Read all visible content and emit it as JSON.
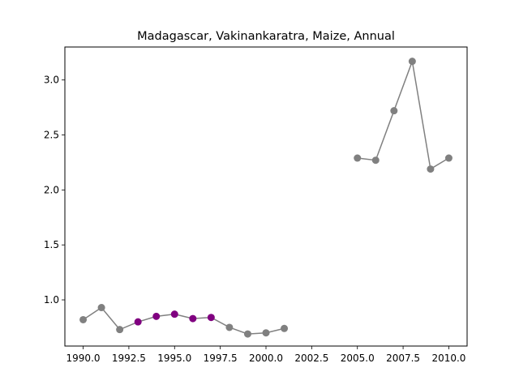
{
  "chart_data": {
    "type": "line",
    "title": "Madagascar, Vakinankaratra, Maize, Annual",
    "xlabel": "",
    "ylabel": "",
    "xlim": [
      1989.0,
      2011.0
    ],
    "ylim": [
      0.58,
      3.3
    ],
    "xticks": [
      1990.0,
      1992.5,
      1995.0,
      1997.5,
      2000.0,
      2002.5,
      2005.0,
      2007.5,
      2010.0
    ],
    "xtick_labels": [
      "1990.0",
      "1992.5",
      "1995.0",
      "1997.5",
      "2000.0",
      "2002.5",
      "2005.0",
      "2007.5",
      "2010.0"
    ],
    "yticks": [
      1.0,
      1.5,
      2.0,
      2.5,
      3.0
    ],
    "ytick_labels": [
      "1.0",
      "1.5",
      "2.0",
      "2.5",
      "3.0"
    ],
    "grid": false,
    "colors": {
      "default": "#808080",
      "highlight": "#800080"
    },
    "segments": [
      [
        {
          "x": 1990,
          "y": 0.82,
          "highlight": false
        },
        {
          "x": 1991,
          "y": 0.93,
          "highlight": false
        },
        {
          "x": 1992,
          "y": 0.73,
          "highlight": false
        },
        {
          "x": 1993,
          "y": 0.8,
          "highlight": true
        },
        {
          "x": 1994,
          "y": 0.85,
          "highlight": true
        },
        {
          "x": 1995,
          "y": 0.87,
          "highlight": true
        },
        {
          "x": 1996,
          "y": 0.83,
          "highlight": true
        },
        {
          "x": 1997,
          "y": 0.84,
          "highlight": true
        },
        {
          "x": 1998,
          "y": 0.75,
          "highlight": false
        },
        {
          "x": 1999,
          "y": 0.69,
          "highlight": false
        },
        {
          "x": 2000,
          "y": 0.7,
          "highlight": false
        },
        {
          "x": 2001,
          "y": 0.74,
          "highlight": false
        }
      ],
      [
        {
          "x": 2005,
          "y": 2.29,
          "highlight": false
        },
        {
          "x": 2006,
          "y": 2.27,
          "highlight": false
        },
        {
          "x": 2007,
          "y": 2.72,
          "highlight": false
        },
        {
          "x": 2008,
          "y": 3.17,
          "highlight": false
        },
        {
          "x": 2009,
          "y": 2.19,
          "highlight": false
        },
        {
          "x": 2010,
          "y": 2.29,
          "highlight": false
        }
      ]
    ]
  }
}
